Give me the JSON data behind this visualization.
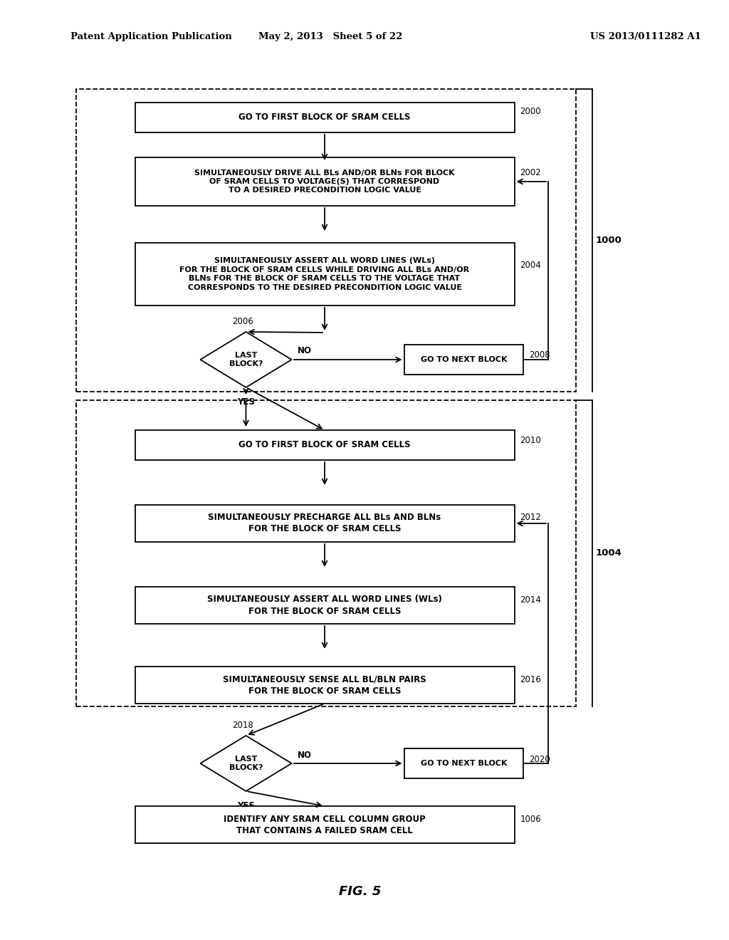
{
  "bg_color": "#ffffff",
  "header_left": "Patent Application Publication",
  "header_mid": "May 2, 2013   Sheet 5 of 22",
  "header_right": "US 2013/0111282 A1",
  "fig_label": "FIG. 5",
  "box1_label": "1000",
  "box2_label": "1004",
  "box3_label": "1006",
  "nodes": {
    "2000": {
      "text": "GO TO FIRST BLOCK OF SRAM CELLS"
    },
    "2002": {
      "text": "SIMULTANEOUSLY DRIVE ALL BLs AND/OR BLNs FOR BLOCK\nOF SRAM CELLS TO VOLTAGE(S) THAT CORRESPOND\nTO A DESIRED PRECONDITION LOGIC VALUE"
    },
    "2004": {
      "text": "SIMULTANEOUSLY ASSERT ALL WORD LINES (WLs)\nFOR THE BLOCK OF SRAM CELLS WHILE DRIVING ALL BLs AND/OR\nBLNs FOR THE BLOCK OF SRAM CELLS TO THE VOLTAGE THAT\nCORRESPONDS TO THE DESIRED PRECONDITION LOGIC VALUE"
    },
    "2006": {
      "text": "LAST\nBLOCK?"
    },
    "2008": {
      "text": "GO TO NEXT BLOCK"
    },
    "2010": {
      "text": "GO TO FIRST BLOCK OF SRAM CELLS"
    },
    "2012": {
      "text": "SIMULTANEOUSLY PRECHARGE ALL BLs AND BLNs\nFOR THE BLOCK OF SRAM CELLS"
    },
    "2014": {
      "text": "SIMULTANEOUSLY ASSERT ALL WORD LINES (WLs)\nFOR THE BLOCK OF SRAM CELLS"
    },
    "2016": {
      "text": "SIMULTANEOUSLY SENSE ALL BL/BLN PAIRS\nFOR THE BLOCK OF SRAM CELLS"
    },
    "2018": {
      "text": "LAST\nBLOCK?"
    },
    "2020": {
      "text": "GO TO NEXT BLOCK"
    },
    "1006": {
      "text": "IDENTIFY ANY SRAM CELL COLUMN GROUP\nTHAT CONTAINS A FAILED SRAM CELL"
    }
  }
}
